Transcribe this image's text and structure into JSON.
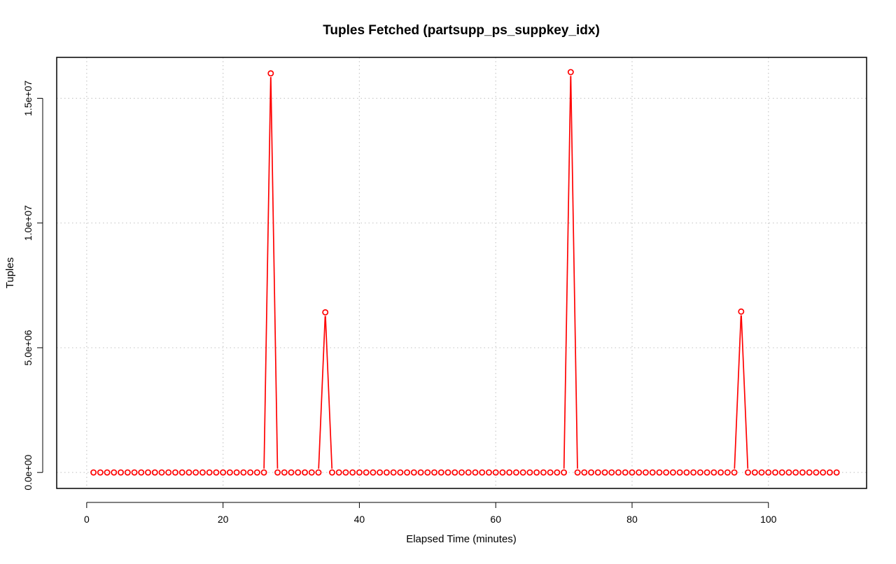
{
  "chart_data": {
    "type": "line",
    "title": "Tuples Fetched (partsupp_ps_suppkey_idx)",
    "xlabel": "Elapsed Time (minutes)",
    "ylabel": "Tuples",
    "xlim": [
      -4.4,
      114.4
    ],
    "ylim": [
      -640000,
      16640000
    ],
    "xticks": [
      0,
      20,
      40,
      60,
      80,
      100
    ],
    "xtick_labels": [
      "0",
      "20",
      "40",
      "60",
      "80",
      "100"
    ],
    "yticks": [
      0,
      5000000,
      10000000,
      15000000
    ],
    "ytick_labels": [
      "0.0e+00",
      "5.0e+06",
      "1.0e+07",
      "1.5e+07"
    ],
    "grid": true,
    "line_style": "overplotted lines and points",
    "series": [
      {
        "color": "#ff0000",
        "x_start": 1,
        "x_end": 110,
        "baseline": 0,
        "peaks": [
          {
            "x": 27,
            "y": 16000000
          },
          {
            "x": 35,
            "y": 6420000
          },
          {
            "x": 71,
            "y": 16050000
          },
          {
            "x": 96,
            "y": 6450000
          }
        ]
      }
    ]
  }
}
